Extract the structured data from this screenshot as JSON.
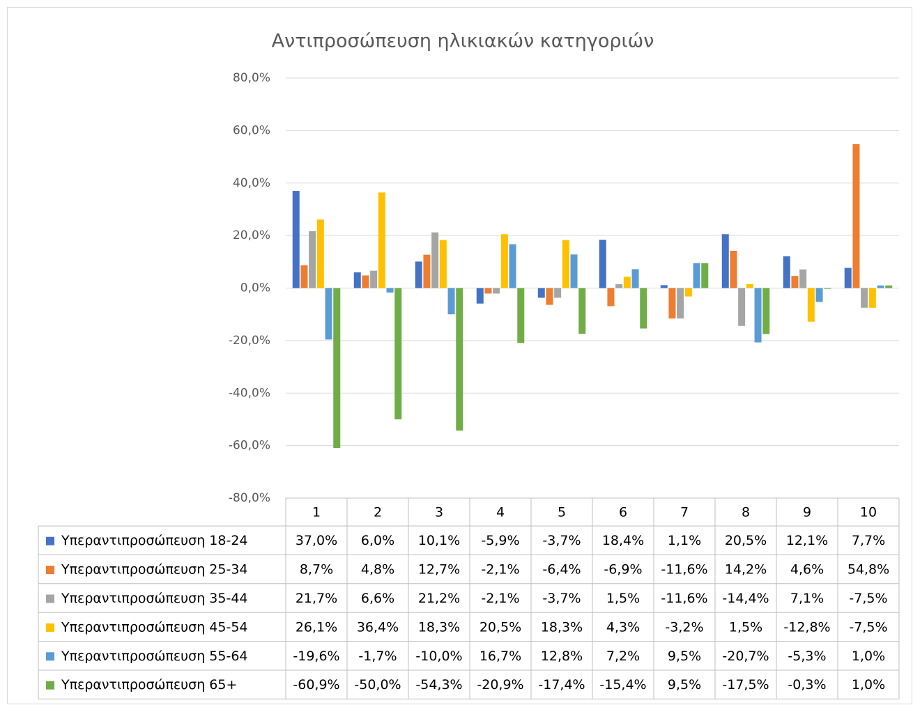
{
  "chart_data": {
    "type": "bar",
    "title": "Αντιπροσώπευση ηλικιακών κατηγοριών",
    "categories": [
      "1",
      "2",
      "3",
      "4",
      "5",
      "6",
      "7",
      "8",
      "9",
      "10"
    ],
    "ylim": [
      -80,
      80
    ],
    "yticks": [
      {
        "value": -80,
        "label": "-80,0%"
      },
      {
        "value": -60,
        "label": "-60,0%"
      },
      {
        "value": -40,
        "label": "-40,0%"
      },
      {
        "value": -20,
        "label": "-20,0%"
      },
      {
        "value": 0,
        "label": "0,0%"
      },
      {
        "value": 20,
        "label": "20,0%"
      },
      {
        "value": 40,
        "label": "40,0%"
      },
      {
        "value": 60,
        "label": "60,0%"
      },
      {
        "value": 80,
        "label": "80,0%"
      }
    ],
    "grid": true,
    "series": [
      {
        "name": "Υπεραντιπροσώπευση 18-24",
        "color": "#4472c4",
        "values": [
          37.0,
          6.0,
          10.1,
          -5.9,
          -3.7,
          18.4,
          1.1,
          20.5,
          12.1,
          7.7
        ],
        "value_labels": [
          "37,0%",
          "6,0%",
          "10,1%",
          "-5,9%",
          "-3,7%",
          "18,4%",
          "1,1%",
          "20,5%",
          "12,1%",
          "7,7%"
        ]
      },
      {
        "name": "Υπεραντιπροσώπευση 25-34",
        "color": "#ed7d31",
        "values": [
          8.7,
          4.8,
          12.7,
          -2.1,
          -6.4,
          -6.9,
          -11.6,
          14.2,
          4.6,
          54.8
        ],
        "value_labels": [
          "8,7%",
          "4,8%",
          "12,7%",
          "-2,1%",
          "-6,4%",
          "-6,9%",
          "-11,6%",
          "14,2%",
          "4,6%",
          "54,8%"
        ]
      },
      {
        "name": "Υπεραντιπροσώπευση 35-44",
        "color": "#a5a5a5",
        "values": [
          21.7,
          6.6,
          21.2,
          -2.1,
          -3.7,
          1.5,
          -11.6,
          -14.4,
          7.1,
          -7.5
        ],
        "value_labels": [
          "21,7%",
          "6,6%",
          "21,2%",
          "-2,1%",
          "-3,7%",
          "1,5%",
          "-11,6%",
          "-14,4%",
          "7,1%",
          "-7,5%"
        ]
      },
      {
        "name": "Υπεραντιπροσώπευση 45-54",
        "color": "#ffc000",
        "values": [
          26.1,
          36.4,
          18.3,
          20.5,
          18.3,
          4.3,
          -3.2,
          1.5,
          -12.8,
          -7.5
        ],
        "value_labels": [
          "26,1%",
          "36,4%",
          "18,3%",
          "20,5%",
          "18,3%",
          "4,3%",
          "-3,2%",
          "1,5%",
          "-12,8%",
          "-7,5%"
        ]
      },
      {
        "name": "Υπεραντιπροσώπευση 55-64",
        "color": "#5b9bd5",
        "values": [
          -19.6,
          -1.7,
          -10.0,
          16.7,
          12.8,
          7.2,
          9.5,
          -20.7,
          -5.3,
          1.0
        ],
        "value_labels": [
          "-19,6%",
          "-1,7%",
          "-10,0%",
          "16,7%",
          "12,8%",
          "7,2%",
          "9,5%",
          "-20,7%",
          "-5,3%",
          "1,0%"
        ]
      },
      {
        "name": "Υπεραντιπροσώπευση 65+",
        "color": "#70ad47",
        "values": [
          -60.9,
          -50.0,
          -54.3,
          -20.9,
          -17.4,
          -15.4,
          9.5,
          -17.5,
          -0.3,
          1.0
        ],
        "value_labels": [
          "-60,9%",
          "-50,0%",
          "-54,3%",
          "-20,9%",
          "-17,4%",
          "-15,4%",
          "9,5%",
          "-17,5%",
          "-0,3%",
          "1,0%"
        ]
      }
    ]
  }
}
